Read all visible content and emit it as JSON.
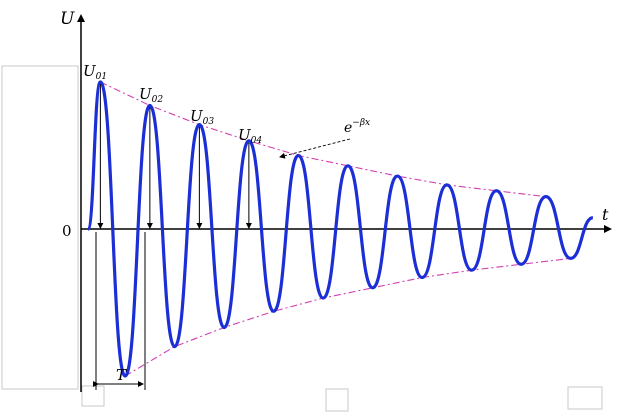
{
  "figure": {
    "y_axis_label": "U",
    "x_axis_label": "t",
    "origin_label": "0",
    "period_label": "T",
    "envelope_label": "e",
    "envelope_exponent": "−βx",
    "peak_labels": [
      "U",
      "U",
      "U",
      "U"
    ],
    "peak_subscripts": [
      "01",
      "02",
      "03",
      "04"
    ]
  },
  "chart_data": {
    "type": "line",
    "description_free": true,
    "series": [
      {
        "kind": "damped-oscillation",
        "cycles_shown": 10,
        "peak_values": [
          1.0,
          0.84,
          0.71,
          0.6,
          0.5,
          0.43,
          0.36,
          0.3,
          0.26,
          0.22
        ],
        "trough_values": [
          -1.0,
          -0.8,
          -0.67,
          -0.56,
          -0.47,
          -0.4,
          -0.33,
          -0.28,
          -0.24,
          -0.2
        ]
      }
    ],
    "colors": {
      "signal": "#1c2fd6",
      "envelope": "#d23fb0",
      "axes": "#000000",
      "helper_boxes": "#c8c8c8"
    }
  }
}
